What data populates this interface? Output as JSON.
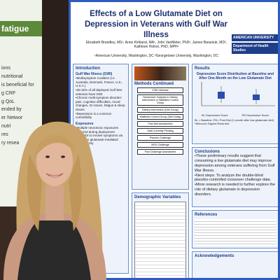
{
  "left_poster": {
    "heading": "fatigue",
    "lines": [
      "ions",
      "nutritional",
      "is beneficial for",
      "g CRF",
      "g QoL",
      "ended by",
      "er Networ",
      "nutri",
      "res",
      "ry resea"
    ]
  },
  "poster": {
    "title": "Effects of a Low Glutamate Diet on Depression in Veterans with Gulf War Illness",
    "authors": "Elizabeth Brandley, MS¹, Anne Kirkland, MA¹, John VanMeter, PhD², James Baraniuk, MD², Kathleen Holton, PhD, MPH¹",
    "affiliations": "¹American University, Washington, DC  ²Georgetown University, Washington, DC",
    "logos": [
      "AMERICAN UNIVERSITY",
      "Department of Health Studies"
    ],
    "introduction": {
      "heading": "Introduction",
      "subheading": "Gulf War Illness (GWI)",
      "bullets": [
        "Multisymptom Coalition (i.e. Australia, Denmark, France, U.K., U.S.A.)",
        "25-32% of all deployed Gulf War veterans have GWI",
        "Chronic multi-symptom disorder: pain, cognitive difficulties, mood changes, GI issues, fatigue & sleep issues",
        "Depression is a common comorbidity"
      ],
      "exposures_heading": "Exposures",
      "exposures": [
        "Multiple neurotoxic exposures occurred during deployment",
        "Thought to involve symptoms via effects on glutamate-mediated excitotoxicity"
      ]
    },
    "methods": {
      "heading": "Methods Continued",
      "boxes": [
        "2785 Veterans",
        "Randomize Subjects to Dietary Intervention or Waitlisted Control Group",
        "Dietary Intervention (Diet Group)",
        "Waitlisted Control Group (Diet Delay)",
        "Post Diet Assessment",
        "Data Currently Pending",
        "Placebo Challenge",
        "MSG Challenge",
        "Post Challenge Assessment"
      ]
    },
    "demographics": {
      "heading": "Demographic Variables"
    },
    "results": {
      "heading": "Results",
      "chart_title": "Depression Score Distribution at Baseline and After One-Month on the Low Glutamate Diet",
      "x_labels": [
        "BL Depression Score",
        "PD Depression Score"
      ],
      "notes": [
        "BL = Baseline, PD= Post Diet (1-month after low glutamate diet)",
        "*Wilcoxon Signed Rank test"
      ]
    },
    "conclusions": {
      "heading": "Conclusions",
      "bullets": [
        "These preliminary results suggest that consuming a low glutamate diet may improve depression among veterans suffering from Gulf War Illness.",
        "Next steps: To analyze the double-blind placebo-controlled crossover challenge data.",
        "More research is needed to further explore the role of dietary glutamate in depression disorders."
      ]
    },
    "references": {
      "heading": "References"
    },
    "acknowledgements": {
      "heading": "Acknowledgements"
    }
  }
}
